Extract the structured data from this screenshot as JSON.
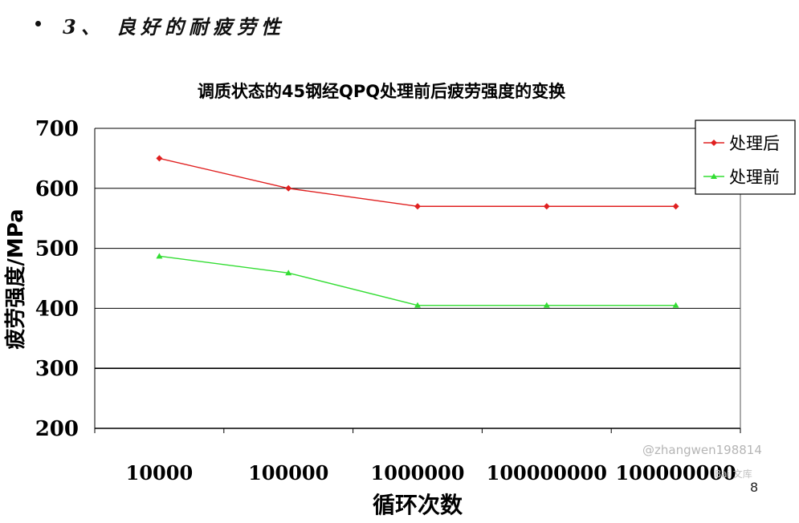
{
  "slide": {
    "heading": "3、 良好的耐疲劳性",
    "page_number": "8"
  },
  "watermark": {
    "user": "@zhangwen198814",
    "logo": "Bai 文库"
  },
  "colors": {
    "after": "#e02020",
    "before": "#33dd33",
    "grid": "#000000"
  },
  "chart_data": {
    "type": "line",
    "title": "调质状态的45钢经QPQ处理前后疲劳强度的变换",
    "xlabel": "循环次数",
    "ylabel": "疲劳强度/MPa",
    "categories": [
      "10000",
      "100000",
      "1000000",
      "100000000",
      "100000000"
    ],
    "ylim": [
      200,
      700
    ],
    "yticks": [
      700,
      600,
      500,
      400,
      300,
      200
    ],
    "grid": "horizontal",
    "legend_position": "top-right",
    "series": [
      {
        "name": "处理后",
        "marker": "diamond",
        "values": [
          650,
          600,
          570,
          570,
          570
        ]
      },
      {
        "name": "处理前",
        "marker": "triangle",
        "values": [
          487,
          459,
          405,
          405,
          405
        ]
      }
    ]
  }
}
